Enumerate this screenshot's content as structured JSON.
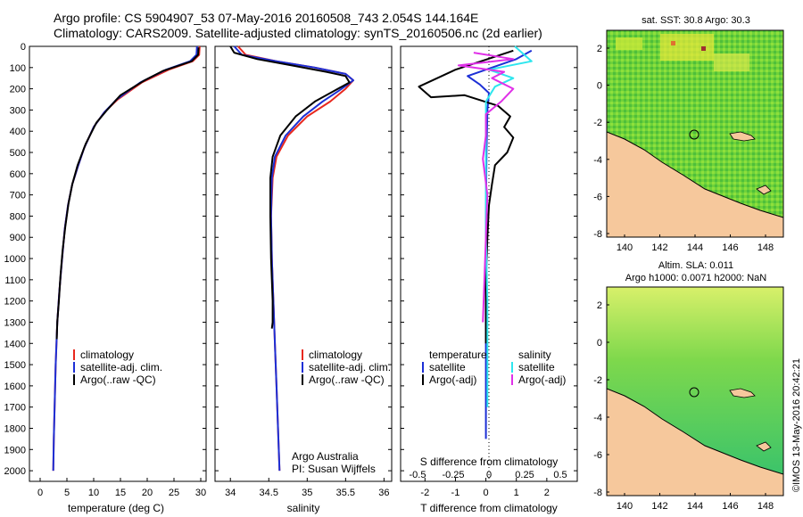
{
  "header": {
    "line1": "Argo profile: CS 5904907_53 07-May-2016 20160508_743 2.054S 144.164E",
    "line2": "Climatology: CARS2009. Satellite-adjusted climatology: synTS_20160506.nc (2d earlier)"
  },
  "colors": {
    "climatology": "#e8281e",
    "satellite": "#1c2fd6",
    "argo": "#000000",
    "sat_sal": "#2ee6ee",
    "argo_sal": "#e030e8",
    "land": "#f6c89c"
  },
  "chart_data": [
    {
      "type": "line",
      "xlabel": "temperature (deg C)",
      "xlim": [
        -2,
        31
      ],
      "xticks": [
        0,
        5,
        10,
        15,
        20,
        25,
        30
      ],
      "ylim": [
        0,
        2050
      ],
      "yticks": [
        0,
        100,
        200,
        300,
        400,
        500,
        600,
        700,
        800,
        900,
        1000,
        1100,
        1200,
        1300,
        1400,
        1500,
        1600,
        1700,
        1800,
        1900,
        2000
      ],
      "y_reversed": true,
      "legend": [
        "climatology",
        "satellite-adj. clim.",
        "Argo(..raw -QC)"
      ],
      "legend_location": "lower-center",
      "series": [
        {
          "name": "climatology",
          "color": "#e8281e",
          "points": [
            [
              29.8,
              0
            ],
            [
              29.7,
              40
            ],
            [
              28.5,
              70
            ],
            [
              24,
              110
            ],
            [
              19,
              170
            ],
            [
              14.5,
              250
            ],
            [
              12,
              310
            ],
            [
              10,
              380
            ],
            [
              8.2,
              480
            ],
            [
              7,
              570
            ],
            [
              6,
              650
            ],
            [
              5.2,
              750
            ],
            [
              4.6,
              860
            ],
            [
              4.1,
              1000
            ],
            [
              3.6,
              1150
            ],
            [
              3.2,
              1300
            ],
            [
              2.9,
              1500
            ],
            [
              2.7,
              1700
            ],
            [
              2.55,
              1850
            ],
            [
              2.45,
              2000
            ]
          ]
        },
        {
          "name": "satellite-adj. clim.",
          "color": "#1c2fd6",
          "points": [
            [
              29.3,
              0
            ],
            [
              29.2,
              40
            ],
            [
              28.0,
              70
            ],
            [
              23.5,
              110
            ],
            [
              18.7,
              170
            ],
            [
              14.3,
              250
            ],
            [
              12,
              310
            ],
            [
              10,
              380
            ],
            [
              8.2,
              480
            ],
            [
              7,
              570
            ],
            [
              6,
              650
            ],
            [
              5.2,
              750
            ],
            [
              4.6,
              860
            ],
            [
              4.1,
              1000
            ],
            [
              3.6,
              1150
            ],
            [
              3.2,
              1300
            ],
            [
              2.9,
              1500
            ],
            [
              2.7,
              1700
            ],
            [
              2.55,
              1850
            ],
            [
              2.45,
              2000
            ]
          ]
        },
        {
          "name": "Argo(..raw -QC)",
          "color": "#000000",
          "points": [
            [
              29.6,
              5
            ],
            [
              29.5,
              40
            ],
            [
              28.3,
              70
            ],
            [
              23,
              115
            ],
            [
              19.5,
              160
            ],
            [
              15,
              230
            ],
            [
              12.5,
              300
            ],
            [
              10.5,
              360
            ],
            [
              8.5,
              460
            ],
            [
              7,
              560
            ],
            [
              6,
              650
            ],
            [
              5.3,
              740
            ],
            [
              4.7,
              850
            ],
            [
              4.2,
              960
            ],
            [
              3.8,
              1080
            ],
            [
              3.5,
              1200
            ],
            [
              3.2,
              1300
            ],
            [
              3.1,
              1380
            ]
          ]
        }
      ]
    },
    {
      "type": "line",
      "xlabel": "salinity",
      "xlim": [
        33.8,
        36.1
      ],
      "xticks": [
        34,
        34.5,
        35,
        35.5,
        36
      ],
      "ylim": [
        0,
        2050
      ],
      "y_reversed": true,
      "legend": [
        "climatology",
        "satellite-adj. clim.",
        "Argo(..raw -QC)"
      ],
      "legend_location": "lower-right",
      "annotation": [
        "Argo Australia",
        "PI: Susan Wijffels"
      ],
      "series": [
        {
          "name": "climatology",
          "color": "#e8281e",
          "points": [
            [
              34.1,
              0
            ],
            [
              34.2,
              40
            ],
            [
              34.6,
              70
            ],
            [
              35.1,
              100
            ],
            [
              35.5,
              130
            ],
            [
              35.6,
              160
            ],
            [
              35.5,
              200
            ],
            [
              35.3,
              260
            ],
            [
              35.0,
              330
            ],
            [
              34.75,
              420
            ],
            [
              34.6,
              520
            ],
            [
              34.55,
              620
            ],
            [
              34.53,
              800
            ],
            [
              34.54,
              1000
            ],
            [
              34.56,
              1200
            ],
            [
              34.58,
              1400
            ],
            [
              34.6,
              1600
            ],
            [
              34.62,
              1800
            ],
            [
              34.64,
              2000
            ]
          ]
        },
        {
          "name": "satellite-adj. clim.",
          "color": "#1c2fd6",
          "points": [
            [
              34.05,
              0
            ],
            [
              34.15,
              40
            ],
            [
              34.6,
              70
            ],
            [
              35.1,
              100
            ],
            [
              35.5,
              130
            ],
            [
              35.6,
              160
            ],
            [
              35.45,
              200
            ],
            [
              35.2,
              260
            ],
            [
              34.95,
              330
            ],
            [
              34.72,
              420
            ],
            [
              34.58,
              520
            ],
            [
              34.54,
              620
            ],
            [
              34.53,
              800
            ],
            [
              34.54,
              1000
            ],
            [
              34.56,
              1200
            ],
            [
              34.58,
              1400
            ],
            [
              34.6,
              1600
            ],
            [
              34.62,
              1800
            ],
            [
              34.64,
              2000
            ]
          ]
        },
        {
          "name": "Argo(..raw -QC)",
          "color": "#000000",
          "points": [
            [
              34.0,
              0
            ],
            [
              34.05,
              30
            ],
            [
              34.35,
              60
            ],
            [
              34.8,
              90
            ],
            [
              35.25,
              120
            ],
            [
              35.5,
              140
            ],
            [
              35.55,
              170
            ],
            [
              35.35,
              210
            ],
            [
              35.1,
              260
            ],
            [
              34.85,
              330
            ],
            [
              34.65,
              420
            ],
            [
              34.55,
              520
            ],
            [
              34.52,
              620
            ],
            [
              34.52,
              800
            ],
            [
              34.53,
              1000
            ],
            [
              34.55,
              1200
            ],
            [
              34.55,
              1300
            ],
            [
              34.54,
              1330
            ]
          ]
        }
      ]
    },
    {
      "type": "line",
      "xlabel": "T difference from climatology",
      "xlabel_top": "S difference from climatology",
      "xlim": [
        -2.8,
        3.0
      ],
      "xticks_T": [
        -2,
        -1,
        0,
        1,
        2
      ],
      "xticks_S": [
        "-0.5",
        "-0.25",
        "0",
        "0.25",
        "0.5"
      ],
      "ylim": [
        0,
        2050
      ],
      "y_reversed": true,
      "legend_temperature_title": "temperature",
      "legend_salinity_title": "salinity",
      "legend_temperature": [
        "satellite",
        "Argo(-adj)"
      ],
      "legend_salinity": [
        "satellite",
        "Argo(-adj)"
      ],
      "series": [
        {
          "name": "temperature satellite",
          "color": "#1c2fd6",
          "points": [
            [
              1.5,
              20
            ],
            [
              1.0,
              60
            ],
            [
              0.2,
              100
            ],
            [
              -0.6,
              140
            ],
            [
              -0.2,
              180
            ],
            [
              0.1,
              220
            ],
            [
              0.05,
              300
            ],
            [
              0.02,
              500
            ],
            [
              0.0,
              800
            ],
            [
              0.0,
              1100
            ],
            [
              0.0,
              1400
            ],
            [
              0.0,
              1700
            ],
            [
              0.0,
              1850
            ]
          ]
        },
        {
          "name": "temperature Argo(-adj)",
          "color": "#000000",
          "points": [
            [
              0.9,
              20
            ],
            [
              -1.0,
              110
            ],
            [
              -2.2,
              190
            ],
            [
              -1.8,
              240
            ],
            [
              -0.7,
              230
            ],
            [
              0.4,
              280
            ],
            [
              0.8,
              330
            ],
            [
              0.6,
              380
            ],
            [
              0.9,
              430
            ],
            [
              0.7,
              500
            ],
            [
              0.3,
              560
            ],
            [
              0.2,
              650
            ],
            [
              0.1,
              750
            ],
            [
              0.05,
              900
            ],
            [
              0.0,
              1100
            ],
            [
              0.0,
              1300
            ],
            [
              0.0,
              1400
            ]
          ]
        },
        {
          "name": "salinity satellite",
          "color": "#2ee6ee",
          "points": [
            [
              0.95,
              0
            ],
            [
              1.5,
              70
            ],
            [
              0.1,
              110
            ],
            [
              0.9,
              150
            ],
            [
              0.3,
              190
            ],
            [
              0.0,
              260
            ],
            [
              0.0,
              400
            ],
            [
              0.0,
              600
            ],
            [
              0.0,
              900
            ],
            [
              0.05,
              1200
            ],
            [
              0.05,
              1500
            ],
            [
              0.05,
              1700
            ]
          ]
        },
        {
          "name": "salinity Argo(-adj)",
          "color": "#e030e8",
          "points": [
            [
              -0.4,
              30
            ],
            [
              0.9,
              60
            ],
            [
              -0.9,
              90
            ],
            [
              0.6,
              120
            ],
            [
              0.2,
              150
            ],
            [
              0.9,
              200
            ],
            [
              0.5,
              260
            ],
            [
              0.0,
              320
            ],
            [
              0.0,
              420
            ],
            [
              -0.1,
              530
            ],
            [
              0.05,
              700
            ],
            [
              0.0,
              900
            ],
            [
              -0.05,
              1100
            ],
            [
              -0.1,
              1300
            ]
          ]
        }
      ]
    }
  ],
  "maps": {
    "sst": {
      "title": "sat. SST: 30.8  Argo: 30.3",
      "xticks": [
        "140",
        "142",
        "144",
        "146",
        "148"
      ],
      "yticks": [
        "2",
        "0",
        "-2",
        "-4",
        "-6",
        "-8"
      ]
    },
    "sla": {
      "title1": "Altim. SLA: 0.011",
      "title2": "Argo h1000: 0.0071  h2000: NaN",
      "xticks": [
        "140",
        "142",
        "144",
        "146",
        "148"
      ],
      "yticks": [
        "2",
        "0",
        "-2",
        "-4",
        "-6",
        "-8"
      ]
    }
  },
  "credit": "©IMOS 13-May-2016 20:42:21"
}
